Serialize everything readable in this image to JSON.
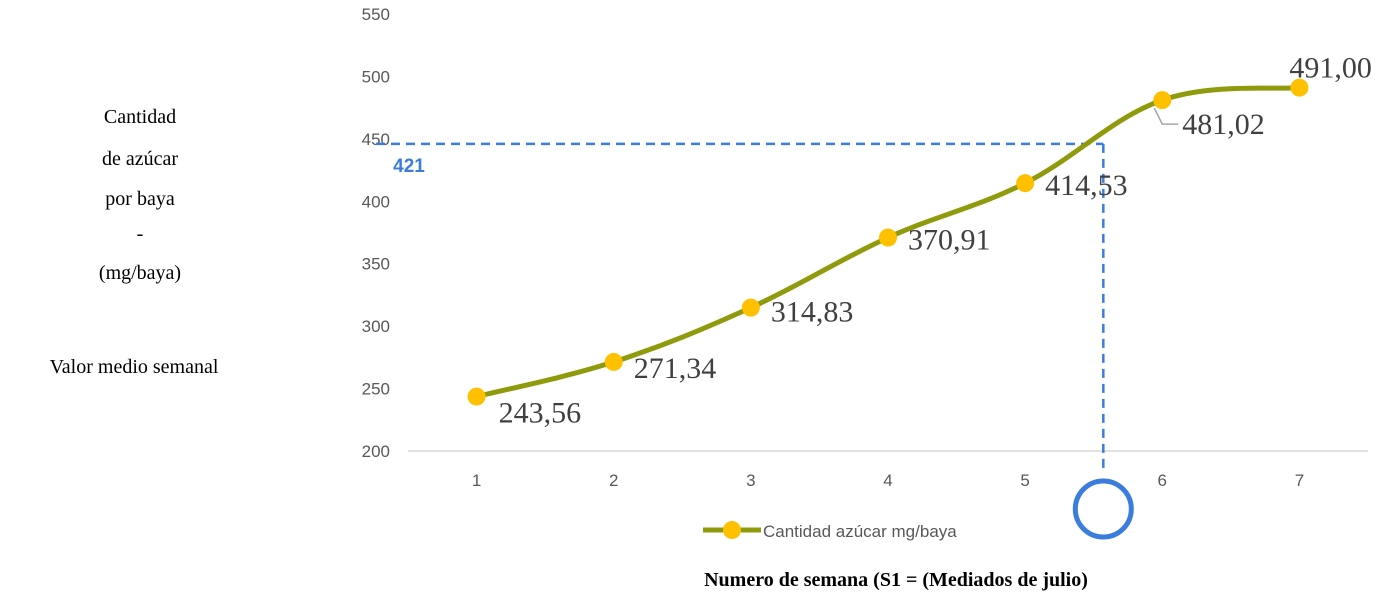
{
  "chart_data": {
    "type": "line",
    "categories": [
      "1",
      "2",
      "3",
      "4",
      "5",
      "6",
      "7"
    ],
    "series": [
      {
        "name": "Cantidad azúcar mg/baya",
        "values": [
          243.56,
          271.34,
          314.83,
          370.91,
          414.53,
          481.02,
          491.0
        ],
        "labels": [
          "243,56",
          "271,34",
          "314,83",
          "370,91",
          "414,53",
          "481,02",
          "491,00"
        ],
        "line_color": "#8F9A0C",
        "marker_color": "#FFC000"
      }
    ],
    "ylim": [
      200,
      550
    ],
    "yticks": [
      "200",
      "250",
      "300",
      "350",
      "400",
      "450",
      "500",
      "550"
    ],
    "ylabel_lines": [
      "Cantidad",
      "de azúcar",
      "por baya",
      "-",
      "(mg/baya)"
    ],
    "ylabel_note": "Valor medio semanal",
    "xlabel": "Numero de semana (S1 = (Mediados de julio)",
    "grid": false,
    "legend_position": "bottom",
    "annotation": {
      "label": "421",
      "y_value": 446,
      "x_value": 5.57,
      "color": "#3B7DDD"
    }
  }
}
